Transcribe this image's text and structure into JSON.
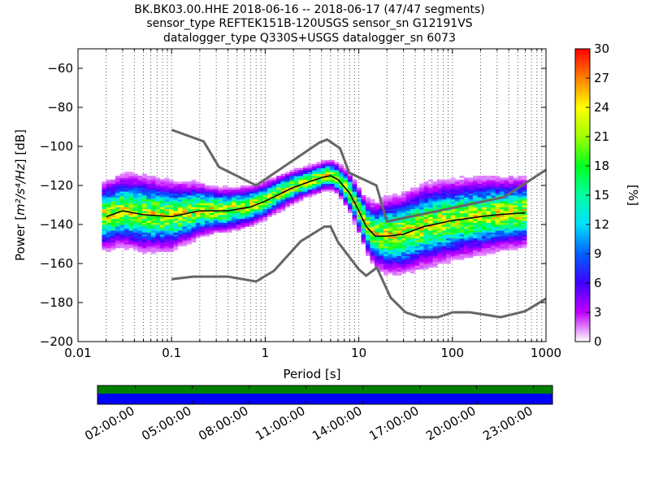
{
  "chart_data": {
    "type": "heatmap",
    "title_lines": [
      "BK.BK03.00.HHE   2018-06-16 -- 2018-06-17  (47/47 segments)",
      "sensor_type REFTEK151B-120USGS sensor_sn G12191VS",
      "datalogger_type Q330S+USGS datalogger_sn 6073"
    ],
    "xlabel": "Period [s]",
    "ylabel_prefix": "Power [",
    "ylabel_math": "m²/s⁴/Hz",
    "ylabel_suffix": "] [dB]",
    "xscale": "log",
    "xlim": [
      0.01,
      1000
    ],
    "ylim": [
      -200,
      -50
    ],
    "x_ticks": [
      0.01,
      0.1,
      1,
      10,
      100,
      1000
    ],
    "x_tick_labels": [
      "0.01",
      "0.1",
      "1",
      "10",
      "100",
      "1000"
    ],
    "y_ticks": [
      -200,
      -180,
      -160,
      -140,
      -120,
      -100,
      -80,
      -60
    ],
    "y_tick_labels": [
      "−200",
      "−180",
      "−160",
      "−140",
      "−120",
      "−100",
      "−80",
      "−60"
    ],
    "grid": "dotted-vertical",
    "colorbar": {
      "label": "[%]",
      "range": [
        0,
        30
      ],
      "ticks": [
        0,
        3,
        6,
        9,
        12,
        15,
        18,
        21,
        24,
        27,
        30
      ],
      "tick_labels": [
        "0",
        "3",
        "6",
        "9",
        "12",
        "15",
        "18",
        "21",
        "24",
        "27",
        "30"
      ]
    },
    "noise_model_high": [
      {
        "x": 0.1,
        "y": -91.5
      },
      {
        "x": 0.22,
        "y": -97.4
      },
      {
        "x": 0.32,
        "y": -110.5
      },
      {
        "x": 0.8,
        "y": -120.0
      },
      {
        "x": 3.8,
        "y": -98.0
      },
      {
        "x": 4.6,
        "y": -96.5
      },
      {
        "x": 6.3,
        "y": -101.0
      },
      {
        "x": 7.9,
        "y": -113.5
      },
      {
        "x": 15.4,
        "y": -120.0
      },
      {
        "x": 20,
        "y": -138.5
      },
      {
        "x": 354.8,
        "y": -126.0
      },
      {
        "x": 1000,
        "y": -112.0
      }
    ],
    "noise_model_low": [
      {
        "x": 0.1,
        "y": -168.0
      },
      {
        "x": 0.17,
        "y": -166.7
      },
      {
        "x": 0.4,
        "y": -166.7
      },
      {
        "x": 0.8,
        "y": -169.2
      },
      {
        "x": 1.24,
        "y": -163.7
      },
      {
        "x": 2.4,
        "y": -148.6
      },
      {
        "x": 4.3,
        "y": -141.1
      },
      {
        "x": 5.0,
        "y": -141.1
      },
      {
        "x": 6.0,
        "y": -149.0
      },
      {
        "x": 10.0,
        "y": -163.0
      },
      {
        "x": 12.0,
        "y": -166.2
      },
      {
        "x": 15.6,
        "y": -162.1
      },
      {
        "x": 21.9,
        "y": -177.5
      },
      {
        "x": 31.6,
        "y": -185.0
      },
      {
        "x": 45,
        "y": -187.5
      },
      {
        "x": 70,
        "y": -187.5
      },
      {
        "x": 101,
        "y": -185.0
      },
      {
        "x": 154,
        "y": -185.0
      },
      {
        "x": 328,
        "y": -187.5
      },
      {
        "x": 600,
        "y": -184.4
      },
      {
        "x": 1000,
        "y": -178.0
      }
    ],
    "mean_psd": [
      {
        "x": 0.02,
        "y": -136
      },
      {
        "x": 0.03,
        "y": -133
      },
      {
        "x": 0.05,
        "y": -135
      },
      {
        "x": 0.1,
        "y": -136
      },
      {
        "x": 0.2,
        "y": -133
      },
      {
        "x": 0.4,
        "y": -133
      },
      {
        "x": 0.7,
        "y": -131
      },
      {
        "x": 1.0,
        "y": -128
      },
      {
        "x": 2.0,
        "y": -121
      },
      {
        "x": 3.0,
        "y": -118
      },
      {
        "x": 4.0,
        "y": -116
      },
      {
        "x": 5.0,
        "y": -115
      },
      {
        "x": 6.0,
        "y": -117
      },
      {
        "x": 8.0,
        "y": -124
      },
      {
        "x": 10,
        "y": -133
      },
      {
        "x": 12,
        "y": -141
      },
      {
        "x": 15,
        "y": -146
      },
      {
        "x": 20,
        "y": -146
      },
      {
        "x": 30,
        "y": -145
      },
      {
        "x": 50,
        "y": -141
      },
      {
        "x": 100,
        "y": -138
      },
      {
        "x": 200,
        "y": -136
      },
      {
        "x": 300,
        "y": -135
      },
      {
        "x": 600,
        "y": -134
      }
    ],
    "spread": [
      {
        "x": 0.02,
        "w": 9
      },
      {
        "x": 0.05,
        "w": 10
      },
      {
        "x": 0.1,
        "w": 9
      },
      {
        "x": 0.3,
        "w": 6
      },
      {
        "x": 1.0,
        "w": 5
      },
      {
        "x": 3.0,
        "w": 4
      },
      {
        "x": 6.0,
        "w": 4
      },
      {
        "x": 10,
        "w": 6
      },
      {
        "x": 20,
        "w": 10
      },
      {
        "x": 50,
        "w": 11
      },
      {
        "x": 200,
        "w": 10
      },
      {
        "x": 600,
        "w": 9
      }
    ],
    "timeline": {
      "tick_labels": [
        "02:00:00",
        "05:00:00",
        "08:00:00",
        "11:00:00",
        "14:00:00",
        "17:00:00",
        "20:00:00",
        "23:00:00"
      ],
      "tick_hours": [
        2,
        5,
        8,
        11,
        14,
        17,
        20,
        23
      ],
      "start_hour": 0,
      "end_hour": 24,
      "segments_total": 47,
      "top_band_color": "#007f00",
      "bottom_band_color": "#0000ff"
    }
  }
}
